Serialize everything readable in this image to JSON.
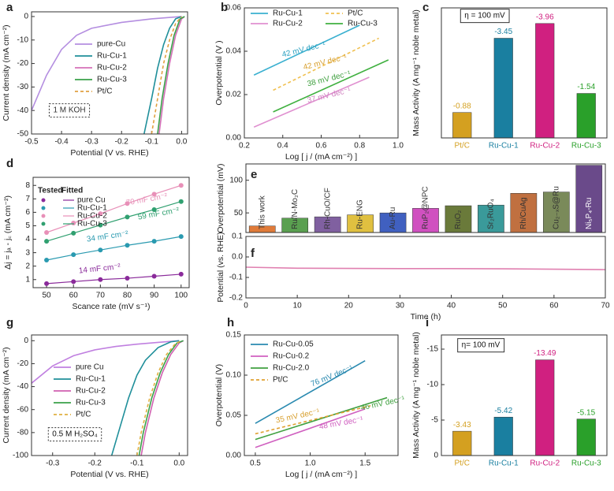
{
  "chart_data": [
    {
      "type": "line",
      "letter": "a",
      "xlabel": "Potential (V vs. RHE)",
      "ylabel": "Current density (mA cm⁻²)",
      "xlim": [
        -0.5,
        0.02
      ],
      "xticks": [
        -0.5,
        -0.4,
        -0.3,
        -0.2,
        -0.1,
        {
          "value": 0,
          "label": "0.0"
        }
      ],
      "ylim": [
        -50,
        2
      ],
      "yticks": [
        -50,
        -40,
        -30,
        -20,
        -10,
        0
      ],
      "series": [
        {
          "name": "pure-Cu",
          "color": "#b48ee0",
          "x": [
            -0.5,
            -0.45,
            -0.4,
            -0.35,
            -0.3,
            -0.2,
            -0.1,
            0
          ],
          "values": [
            -40,
            -25,
            -14,
            -8,
            -5,
            -2.5,
            -1,
            0
          ]
        },
        {
          "name": "Ru-Cu-1",
          "color": "#1f8f9a",
          "x": [
            -0.125,
            -0.1,
            -0.08,
            -0.06,
            -0.04,
            -0.02,
            0
          ],
          "values": [
            -50,
            -35,
            -22,
            -12,
            -5,
            -1,
            0
          ]
        },
        {
          "name": "Ru-Cu-2",
          "color": "#d470b8",
          "x": [
            -0.075,
            -0.06,
            -0.04,
            -0.02,
            0,
            0.01
          ],
          "values": [
            -50,
            -35,
            -20,
            -8,
            -1,
            0
          ]
        },
        {
          "name": "Ru-Cu-3",
          "color": "#3aa04a",
          "x": [
            -0.08,
            -0.065,
            -0.045,
            -0.025,
            -0.005,
            0.01
          ],
          "values": [
            -50,
            -35,
            -20,
            -8,
            -1,
            0
          ]
        },
        {
          "name": "Pt/C",
          "color": "#e0a040",
          "dashed": true,
          "x": [
            -0.1,
            -0.08,
            -0.06,
            -0.04,
            -0.02,
            0
          ],
          "values": [
            -50,
            -35,
            -20,
            -10,
            -3,
            0
          ]
        }
      ],
      "annotations": [
        "1 M KOH"
      ]
    },
    {
      "type": "line",
      "letter": "b",
      "xlabel": "Log [ j / (mA cm⁻²) ]",
      "ylabel": "Overpotential (V )",
      "xlim": [
        0.2,
        1.0
      ],
      "xticks": [
        0.2,
        0.4,
        0.6,
        0.8,
        {
          "value": 1.0,
          "label": "1.0"
        }
      ],
      "ylim": [
        0,
        0.06
      ],
      "yticks": [
        {
          "value": 0,
          "label": "0.00"
        },
        0.02,
        0.04,
        0.06
      ],
      "series": [
        {
          "name": "Ru-Cu-1",
          "color": "#3ab0d0",
          "x": [
            0.25,
            0.8
          ],
          "values": [
            0.029,
            0.052
          ]
        },
        {
          "name": "Pt/C",
          "color": "#f0c050",
          "dashed": true,
          "x": [
            0.35,
            0.9
          ],
          "values": [
            0.022,
            0.046
          ]
        },
        {
          "name": "Ru-Cu-2",
          "color": "#e090d0",
          "x": [
            0.25,
            0.85
          ],
          "values": [
            0.005,
            0.028
          ]
        },
        {
          "name": "Ru-Cu-3",
          "color": "#40b040",
          "x": [
            0.35,
            0.95
          ],
          "values": [
            0.012,
            0.036
          ]
        }
      ],
      "annotations": [
        "42 mV dec⁻¹",
        "42 mV dec⁻¹",
        "38 mV dec⁻¹",
        "37 mV dec⁻¹"
      ]
    },
    {
      "type": "bar",
      "letter": "c",
      "ylabel": "Mass Activity (A mg⁻¹ noble metal)",
      "categories": [
        "Pt/C",
        "Ru-Cu-1",
        "Ru-Cu-2",
        "Ru-Cu-3"
      ],
      "values": [
        -0.88,
        -3.45,
        -3.96,
        -1.54
      ],
      "colors": [
        "#d4a020",
        "#1a7fa0",
        "#d02080",
        "#2aa02a"
      ],
      "ylim": [
        0,
        -4.5
      ],
      "annotations": [
        "η = 100 mV"
      ]
    },
    {
      "type": "scatter",
      "letter": "d",
      "xlabel": "Scance rate (mV s⁻¹)",
      "ylabel": "Δj = jₐ - j꜀ (mA cm⁻²)",
      "xlim": [
        45,
        103
      ],
      "xticks": [
        50,
        60,
        70,
        80,
        90,
        100
      ],
      "ylim": [
        0.4,
        8.6
      ],
      "yticks": [
        1,
        2,
        3,
        4,
        5,
        6,
        7,
        8
      ],
      "legend_headers": [
        "Tested",
        "Fitted"
      ],
      "x": [
        50,
        60,
        70,
        80,
        90,
        100
      ],
      "series": [
        {
          "name": "pure Cu",
          "color": "#8a2a9a",
          "values": [
            0.7,
            0.85,
            1.0,
            1.1,
            1.25,
            1.4
          ]
        },
        {
          "name": "Ru-Cu-1",
          "color": "#2a9ab0",
          "values": [
            2.45,
            2.85,
            3.2,
            3.55,
            3.85,
            4.2
          ]
        },
        {
          "name": "Ru-Cu-2",
          "color": "#e890b8",
          "values": [
            4.5,
            5.2,
            5.9,
            6.65,
            7.35,
            8.0
          ]
        },
        {
          "name": "Ru-Cu-3",
          "color": "#30a070",
          "values": [
            3.85,
            4.45,
            5.05,
            5.65,
            6.2,
            6.8
          ]
        }
      ],
      "annotations": [
        "14 mF cm⁻²",
        "34 mF cm⁻²",
        "70 mF cm⁻²",
        "59 mF cm⁻²"
      ]
    },
    {
      "type": "bar",
      "letter": "e",
      "ylabel": "Overpotential (mV)",
      "categories": [
        "This work",
        "Ru/N-Mo₂C",
        "Rh-CuO/CF",
        "Ru-ENG",
        "Au-Ru",
        "RuP₂@NPC",
        "RuO₂",
        "Sr₂RuO₄",
        "Rh/CuAg",
        "Cu₂₋ₓS@Ru",
        "Ni₅P₄-Ru"
      ],
      "values": [
        30,
        42,
        44,
        47,
        50,
        57,
        61,
        62,
        80,
        82,
        123
      ],
      "colors": [
        "#e07b39",
        "#5aa050",
        "#8060a0",
        "#e0c040",
        "#4060c0",
        "#d050c0",
        "#6a7a3a",
        "#3a9a9a",
        "#c07040",
        "#7a8a5a",
        "#6a4a8a"
      ],
      "ylim": [
        20,
        125
      ],
      "yticks": [
        50,
        100
      ]
    },
    {
      "type": "line",
      "letter": "f",
      "xlabel": "Time (h)",
      "ylabel": "Potential (vs. RHE)",
      "xlim": [
        0,
        70
      ],
      "xticks": [
        0,
        10,
        20,
        30,
        40,
        50,
        60,
        70
      ],
      "ylim": [
        -0.2,
        0.1
      ],
      "yticks": [
        -0.2,
        -0.1,
        {
          "value": 0,
          "label": "0.0"
        },
        0.1
      ],
      "series": [
        {
          "color": "#e080b0",
          "x": [
            0,
            10,
            20,
            30,
            40,
            50,
            60,
            70
          ],
          "values": [
            -0.05,
            -0.055,
            -0.056,
            -0.057,
            -0.057,
            -0.058,
            -0.06,
            -0.062
          ]
        }
      ]
    },
    {
      "type": "line",
      "letter": "g",
      "xlabel": "Potential (V vs. RHE)",
      "ylabel": "Current density (mA cm⁻²)",
      "xlim": [
        -0.35,
        0.02
      ],
      "xticks": [
        -0.3,
        -0.2,
        -0.1,
        {
          "value": 0,
          "label": "0.0"
        }
      ],
      "ylim": [
        -100,
        5
      ],
      "yticks": [
        -100,
        -80,
        -60,
        -40,
        -20,
        0
      ],
      "series": [
        {
          "name": "pure Cu",
          "color": "#c080e0",
          "x": [
            -0.35,
            -0.3,
            -0.25,
            -0.2,
            -0.15,
            -0.1,
            -0.05,
            0
          ],
          "values": [
            -37,
            -22,
            -13,
            -8,
            -5,
            -3,
            -1.5,
            0
          ]
        },
        {
          "name": "Ru-Cu-1",
          "color": "#1f8f9a",
          "x": [
            -0.16,
            -0.14,
            -0.12,
            -0.1,
            -0.08,
            -0.05,
            -0.02,
            0
          ],
          "values": [
            -100,
            -75,
            -50,
            -30,
            -17,
            -6,
            -1,
            0
          ]
        },
        {
          "name": "Ru-Cu-2",
          "color": "#d060b0",
          "x": [
            -0.09,
            -0.08,
            -0.06,
            -0.04,
            -0.02,
            0,
            0.01
          ],
          "values": [
            -100,
            -80,
            -50,
            -28,
            -12,
            -2,
            0
          ]
        },
        {
          "name": "Ru-Cu-3",
          "color": "#3aa04a",
          "x": [
            -0.095,
            -0.085,
            -0.065,
            -0.045,
            -0.025,
            -0.005,
            0.01
          ],
          "values": [
            -100,
            -80,
            -50,
            -28,
            -12,
            -2,
            0
          ]
        },
        {
          "name": "Pt/C",
          "color": "#e0b040",
          "dashed": true,
          "x": [
            -0.1,
            -0.09,
            -0.07,
            -0.05,
            -0.03,
            -0.01,
            0.005
          ],
          "values": [
            -100,
            -80,
            -50,
            -28,
            -12,
            -3,
            0
          ]
        }
      ],
      "annotations": [
        "0.5 M H₂SO₄"
      ]
    },
    {
      "type": "line",
      "letter": "h",
      "xlabel": "Log [ j / (mA cm⁻²) ]",
      "ylabel": "Overpotential (V)",
      "xlim": [
        0.4,
        1.8
      ],
      "xticks": [
        0.5,
        {
          "value": 1.0,
          "label": "1.0"
        },
        1.5
      ],
      "ylim": [
        0,
        0.15
      ],
      "yticks": [
        {
          "value": 0,
          "label": "0.00"
        },
        0.05,
        {
          "value": 0.1,
          "label": "0.10"
        },
        0.15
      ],
      "series": [
        {
          "name": "Ru-Cu-0.05",
          "color": "#2a8ab0",
          "x": [
            0.5,
            1.5
          ],
          "values": [
            0.04,
            0.118
          ]
        },
        {
          "name": "Ru-Cu-0.2",
          "color": "#d060c0",
          "x": [
            0.5,
            1.5
          ],
          "values": [
            0.01,
            0.058
          ]
        },
        {
          "name": "Ru-Cu-2.0",
          "color": "#40a040",
          "x": [
            0.5,
            1.7
          ],
          "values": [
            0.02,
            0.072
          ]
        },
        {
          "name": "Pt/C",
          "color": "#e0a030",
          "dashed": true,
          "x": [
            0.5,
            1.55
          ],
          "values": [
            0.027,
            0.062
          ]
        }
      ],
      "annotations": [
        "76 mV dec⁻¹",
        "35 mV dec⁻¹",
        "46 mV dec⁻¹",
        "48 mV dec⁻¹"
      ]
    },
    {
      "type": "bar",
      "letter": "i",
      "ylabel": "Mass Activity (A mg⁻¹ noble metal)",
      "categories": [
        "Pt/C",
        "Ru-Cu-1",
        "Ru-Cu-2",
        "Ru-Cu-3"
      ],
      "values": [
        -3.43,
        -5.42,
        -13.49,
        -5.15
      ],
      "colors": [
        "#d4a020",
        "#1a7fa0",
        "#d02080",
        "#2aa02a"
      ],
      "ylim": [
        0,
        -17
      ],
      "yticks": [
        0,
        -5,
        -10,
        -15
      ],
      "annotations": [
        "η= 100 mV"
      ]
    }
  ]
}
